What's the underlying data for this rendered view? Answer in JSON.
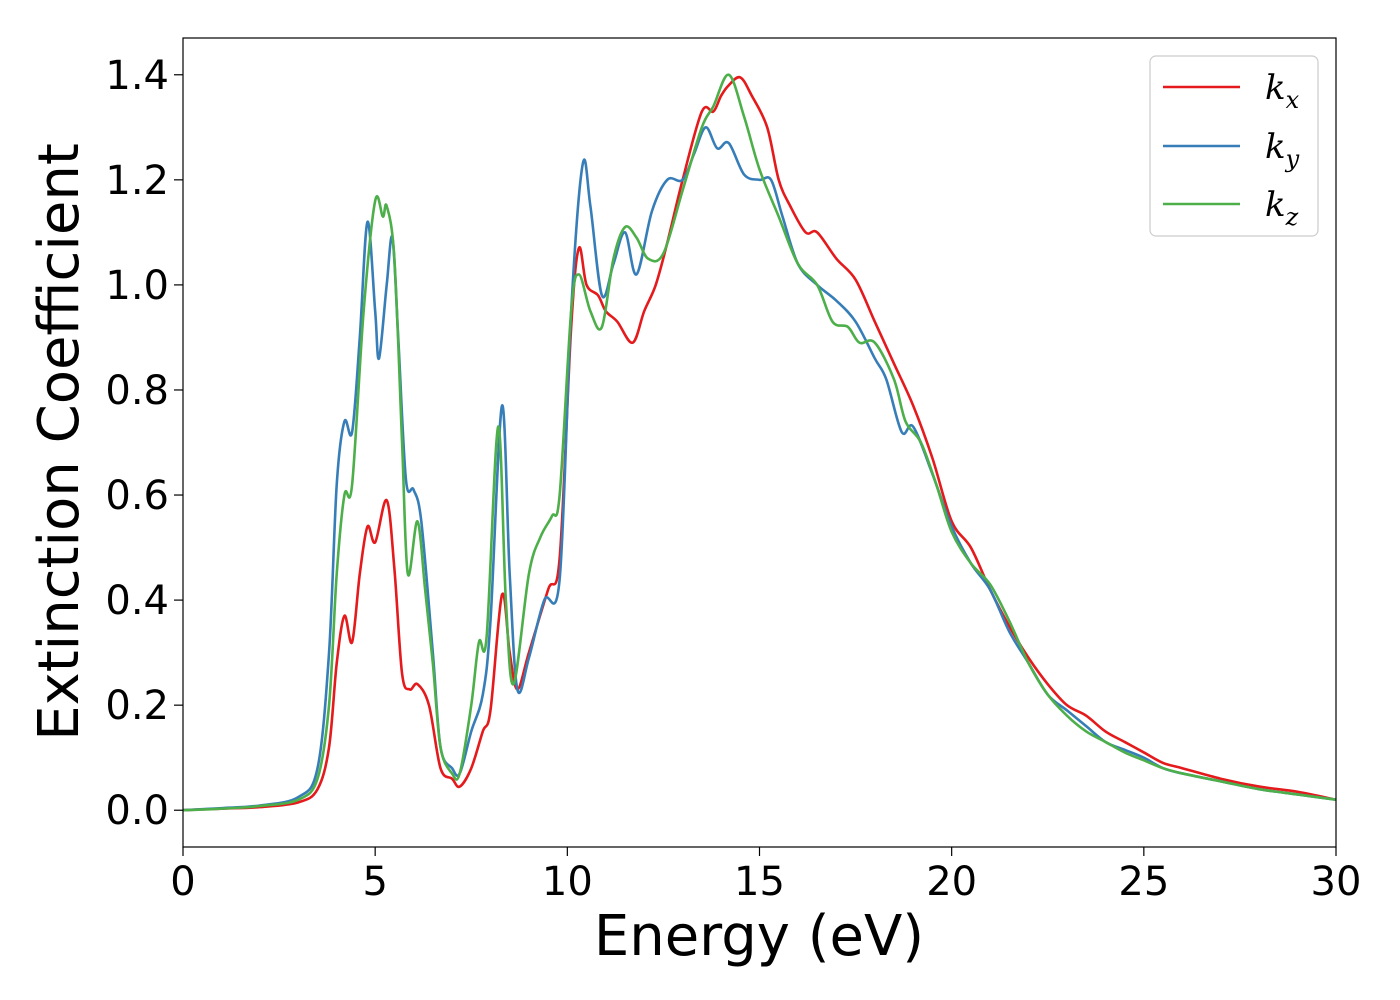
{
  "chart_data": {
    "type": "line",
    "xlabel": "Energy (eV)",
    "ylabel": "Extinction Coefficient",
    "xlim": [
      0,
      30
    ],
    "ylim": [
      -0.07,
      1.47
    ],
    "x_ticks": [
      0,
      5,
      10,
      15,
      20,
      25,
      30
    ],
    "y_ticks": [
      0.0,
      0.2,
      0.4,
      0.6,
      0.8,
      1.0,
      1.2,
      1.4
    ],
    "x_tick_labels": [
      "0",
      "5",
      "10",
      "15",
      "20",
      "25",
      "30"
    ],
    "y_tick_labels": [
      "0.0",
      "0.2",
      "0.4",
      "0.6",
      "0.8",
      "1.0",
      "1.2",
      "1.4"
    ],
    "grid": false,
    "legend_position": "top-right",
    "series": [
      {
        "name": "k",
        "subscript": "x",
        "color": "#e41a1c",
        "points": [
          [
            0,
            0.0
          ],
          [
            1,
            0.003
          ],
          [
            2,
            0.006
          ],
          [
            3,
            0.015
          ],
          [
            3.5,
            0.04
          ],
          [
            3.8,
            0.12
          ],
          [
            4.0,
            0.28
          ],
          [
            4.2,
            0.37
          ],
          [
            4.4,
            0.32
          ],
          [
            4.6,
            0.45
          ],
          [
            4.8,
            0.54
          ],
          [
            5.0,
            0.51
          ],
          [
            5.3,
            0.59
          ],
          [
            5.5,
            0.46
          ],
          [
            5.7,
            0.26
          ],
          [
            5.9,
            0.23
          ],
          [
            6.1,
            0.24
          ],
          [
            6.4,
            0.2
          ],
          [
            6.7,
            0.08
          ],
          [
            7.0,
            0.06
          ],
          [
            7.2,
            0.045
          ],
          [
            7.5,
            0.08
          ],
          [
            7.8,
            0.15
          ],
          [
            8.0,
            0.19
          ],
          [
            8.3,
            0.41
          ],
          [
            8.5,
            0.3
          ],
          [
            8.7,
            0.23
          ],
          [
            9.0,
            0.3
          ],
          [
            9.5,
            0.42
          ],
          [
            9.8,
            0.48
          ],
          [
            10.1,
            0.92
          ],
          [
            10.3,
            1.07
          ],
          [
            10.5,
            1.0
          ],
          [
            10.8,
            0.98
          ],
          [
            11.0,
            0.95
          ],
          [
            11.3,
            0.93
          ],
          [
            11.7,
            0.89
          ],
          [
            12.0,
            0.95
          ],
          [
            12.3,
            1.0
          ],
          [
            12.6,
            1.08
          ],
          [
            13.0,
            1.2
          ],
          [
            13.5,
            1.33
          ],
          [
            13.8,
            1.33
          ],
          [
            14.0,
            1.36
          ],
          [
            14.2,
            1.38
          ],
          [
            14.5,
            1.395
          ],
          [
            14.8,
            1.36
          ],
          [
            15.2,
            1.3
          ],
          [
            15.5,
            1.2
          ],
          [
            15.8,
            1.15
          ],
          [
            16.2,
            1.1
          ],
          [
            16.5,
            1.1
          ],
          [
            17.0,
            1.05
          ],
          [
            17.5,
            1.01
          ],
          [
            18.0,
            0.93
          ],
          [
            18.5,
            0.85
          ],
          [
            19.0,
            0.77
          ],
          [
            19.5,
            0.67
          ],
          [
            20.0,
            0.55
          ],
          [
            20.5,
            0.5
          ],
          [
            21.0,
            0.42
          ],
          [
            21.5,
            0.35
          ],
          [
            22.0,
            0.29
          ],
          [
            22.5,
            0.24
          ],
          [
            23.0,
            0.2
          ],
          [
            23.5,
            0.18
          ],
          [
            24.0,
            0.15
          ],
          [
            24.5,
            0.13
          ],
          [
            25.0,
            0.11
          ],
          [
            25.5,
            0.09
          ],
          [
            26.0,
            0.08
          ],
          [
            27.0,
            0.06
          ],
          [
            28.0,
            0.045
          ],
          [
            29.0,
            0.035
          ],
          [
            30.0,
            0.02
          ]
        ]
      },
      {
        "name": "k",
        "subscript": "y",
        "color": "#377eb8",
        "points": [
          [
            0,
            0.0
          ],
          [
            1,
            0.004
          ],
          [
            2,
            0.009
          ],
          [
            3,
            0.025
          ],
          [
            3.5,
            0.08
          ],
          [
            3.8,
            0.3
          ],
          [
            4.0,
            0.62
          ],
          [
            4.2,
            0.74
          ],
          [
            4.4,
            0.72
          ],
          [
            4.6,
            0.9
          ],
          [
            4.8,
            1.12
          ],
          [
            5.0,
            0.95
          ],
          [
            5.1,
            0.86
          ],
          [
            5.3,
            1.0
          ],
          [
            5.45,
            1.09
          ],
          [
            5.6,
            0.9
          ],
          [
            5.8,
            0.63
          ],
          [
            6.0,
            0.61
          ],
          [
            6.2,
            0.55
          ],
          [
            6.5,
            0.3
          ],
          [
            6.7,
            0.12
          ],
          [
            7.0,
            0.08
          ],
          [
            7.2,
            0.07
          ],
          [
            7.5,
            0.15
          ],
          [
            7.8,
            0.22
          ],
          [
            8.0,
            0.36
          ],
          [
            8.3,
            0.77
          ],
          [
            8.5,
            0.45
          ],
          [
            8.7,
            0.23
          ],
          [
            9.0,
            0.29
          ],
          [
            9.4,
            0.4
          ],
          [
            9.8,
            0.44
          ],
          [
            10.1,
            0.95
          ],
          [
            10.4,
            1.23
          ],
          [
            10.6,
            1.15
          ],
          [
            10.9,
            0.98
          ],
          [
            11.2,
            1.04
          ],
          [
            11.5,
            1.1
          ],
          [
            11.8,
            1.02
          ],
          [
            12.2,
            1.14
          ],
          [
            12.6,
            1.2
          ],
          [
            13.0,
            1.2
          ],
          [
            13.3,
            1.25
          ],
          [
            13.6,
            1.3
          ],
          [
            13.9,
            1.26
          ],
          [
            14.2,
            1.27
          ],
          [
            14.6,
            1.21
          ],
          [
            15.0,
            1.2
          ],
          [
            15.3,
            1.2
          ],
          [
            15.6,
            1.13
          ],
          [
            16.0,
            1.04
          ],
          [
            16.5,
            1.0
          ],
          [
            17.0,
            0.97
          ],
          [
            17.5,
            0.93
          ],
          [
            18.0,
            0.86
          ],
          [
            18.3,
            0.82
          ],
          [
            18.7,
            0.72
          ],
          [
            19.0,
            0.73
          ],
          [
            19.5,
            0.64
          ],
          [
            20.0,
            0.54
          ],
          [
            20.5,
            0.47
          ],
          [
            21.0,
            0.42
          ],
          [
            21.5,
            0.34
          ],
          [
            22.0,
            0.28
          ],
          [
            22.5,
            0.22
          ],
          [
            23.0,
            0.19
          ],
          [
            23.5,
            0.16
          ],
          [
            24.0,
            0.13
          ],
          [
            24.5,
            0.115
          ],
          [
            25.0,
            0.1
          ],
          [
            25.5,
            0.08
          ],
          [
            26.0,
            0.07
          ],
          [
            27.0,
            0.055
          ],
          [
            28.0,
            0.04
          ],
          [
            29.0,
            0.03
          ],
          [
            30.0,
            0.02
          ]
        ]
      },
      {
        "name": "k",
        "subscript": "z",
        "color": "#4daf4a",
        "points": [
          [
            0,
            0.0
          ],
          [
            1,
            0.003
          ],
          [
            2,
            0.008
          ],
          [
            3,
            0.02
          ],
          [
            3.5,
            0.06
          ],
          [
            3.8,
            0.2
          ],
          [
            4.0,
            0.45
          ],
          [
            4.2,
            0.6
          ],
          [
            4.4,
            0.62
          ],
          [
            4.7,
            0.95
          ],
          [
            5.0,
            1.16
          ],
          [
            5.2,
            1.13
          ],
          [
            5.3,
            1.15
          ],
          [
            5.5,
            1.05
          ],
          [
            5.7,
            0.7
          ],
          [
            5.85,
            0.45
          ],
          [
            6.1,
            0.55
          ],
          [
            6.3,
            0.42
          ],
          [
            6.5,
            0.28
          ],
          [
            6.7,
            0.12
          ],
          [
            7.0,
            0.07
          ],
          [
            7.2,
            0.07
          ],
          [
            7.5,
            0.2
          ],
          [
            7.7,
            0.32
          ],
          [
            7.9,
            0.33
          ],
          [
            8.2,
            0.73
          ],
          [
            8.4,
            0.4
          ],
          [
            8.6,
            0.24
          ],
          [
            9.0,
            0.45
          ],
          [
            9.3,
            0.52
          ],
          [
            9.6,
            0.56
          ],
          [
            9.8,
            0.6
          ],
          [
            10.1,
            0.95
          ],
          [
            10.3,
            1.02
          ],
          [
            10.6,
            0.95
          ],
          [
            10.9,
            0.92
          ],
          [
            11.2,
            1.05
          ],
          [
            11.5,
            1.11
          ],
          [
            11.8,
            1.09
          ],
          [
            12.1,
            1.05
          ],
          [
            12.5,
            1.06
          ],
          [
            13.0,
            1.18
          ],
          [
            13.5,
            1.3
          ],
          [
            13.8,
            1.34
          ],
          [
            14.2,
            1.4
          ],
          [
            14.6,
            1.32
          ],
          [
            15.0,
            1.22
          ],
          [
            15.5,
            1.13
          ],
          [
            16.0,
            1.04
          ],
          [
            16.5,
            1.0
          ],
          [
            16.9,
            0.93
          ],
          [
            17.3,
            0.92
          ],
          [
            17.6,
            0.89
          ],
          [
            18.0,
            0.89
          ],
          [
            18.5,
            0.82
          ],
          [
            18.8,
            0.74
          ],
          [
            19.2,
            0.7
          ],
          [
            19.6,
            0.62
          ],
          [
            20.0,
            0.53
          ],
          [
            20.5,
            0.47
          ],
          [
            21.0,
            0.43
          ],
          [
            21.5,
            0.36
          ],
          [
            22.0,
            0.28
          ],
          [
            22.5,
            0.22
          ],
          [
            23.0,
            0.18
          ],
          [
            23.5,
            0.15
          ],
          [
            24.0,
            0.13
          ],
          [
            24.5,
            0.11
          ],
          [
            25.0,
            0.095
          ],
          [
            25.5,
            0.08
          ],
          [
            26.0,
            0.07
          ],
          [
            27.0,
            0.055
          ],
          [
            28.0,
            0.04
          ],
          [
            29.0,
            0.03
          ],
          [
            30.0,
            0.02
          ]
        ]
      }
    ]
  }
}
